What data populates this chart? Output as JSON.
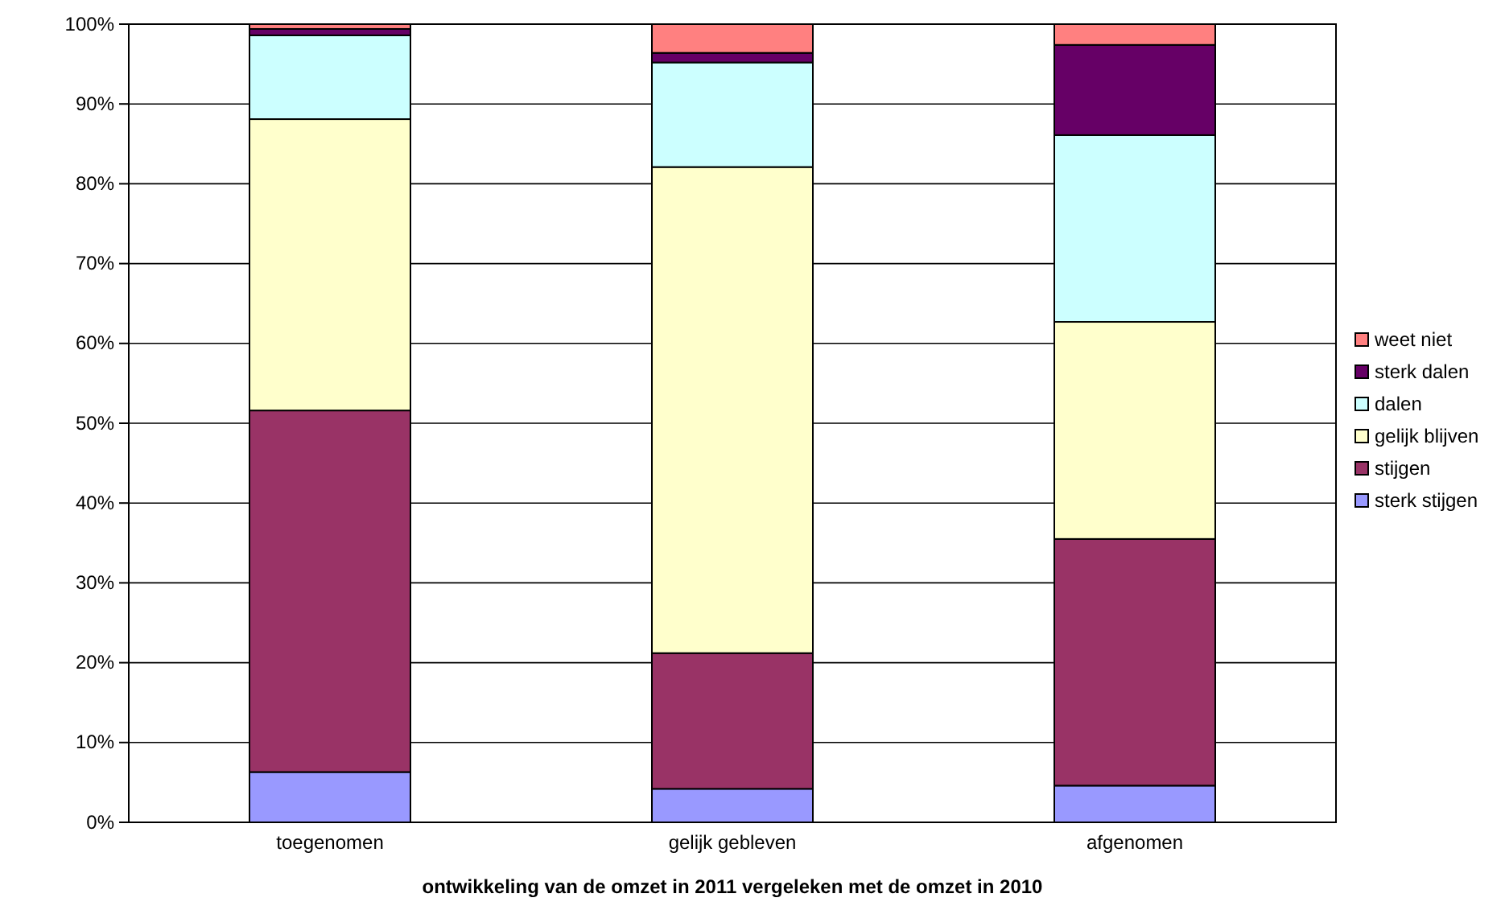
{
  "chart_data": {
    "type": "bar",
    "stacked": true,
    "xlabel": "ontwikkeling van de omzet in 2011 vergeleken met de omzet in 2010",
    "categories": [
      "toegenomen",
      "gelijk gebleven",
      "afgenomen"
    ],
    "series": [
      {
        "name": "sterk stijgen",
        "color": "#9999ff",
        "values": [
          6.3,
          4.2,
          4.6
        ]
      },
      {
        "name": "stijgen",
        "color": "#993366",
        "values": [
          45.3,
          17.0,
          30.9
        ]
      },
      {
        "name": "gelijk blijven",
        "color": "#ffffcc",
        "values": [
          36.5,
          60.9,
          27.2
        ]
      },
      {
        "name": "dalen",
        "color": "#ccffff",
        "values": [
          10.5,
          13.1,
          23.4
        ]
      },
      {
        "name": "sterk dalen",
        "color": "#660066",
        "values": [
          0.8,
          1.2,
          11.3
        ]
      },
      {
        "name": "weet niet",
        "color": "#ff8080",
        "values": [
          0.6,
          3.6,
          2.6
        ]
      }
    ],
    "ylim": [
      0,
      100
    ],
    "yticks": [
      {
        "value": 0,
        "label": "0%"
      },
      {
        "value": 10,
        "label": "10%"
      },
      {
        "value": 20,
        "label": "20%"
      },
      {
        "value": 30,
        "label": "30%"
      },
      {
        "value": 40,
        "label": "40%"
      },
      {
        "value": 50,
        "label": "50%"
      },
      {
        "value": 60,
        "label": "60%"
      },
      {
        "value": 70,
        "label": "70%"
      },
      {
        "value": 80,
        "label": "80%"
      },
      {
        "value": 90,
        "label": "90%"
      },
      {
        "value": 100,
        "label": "100%"
      }
    ],
    "grid": "y",
    "legend": "right"
  }
}
